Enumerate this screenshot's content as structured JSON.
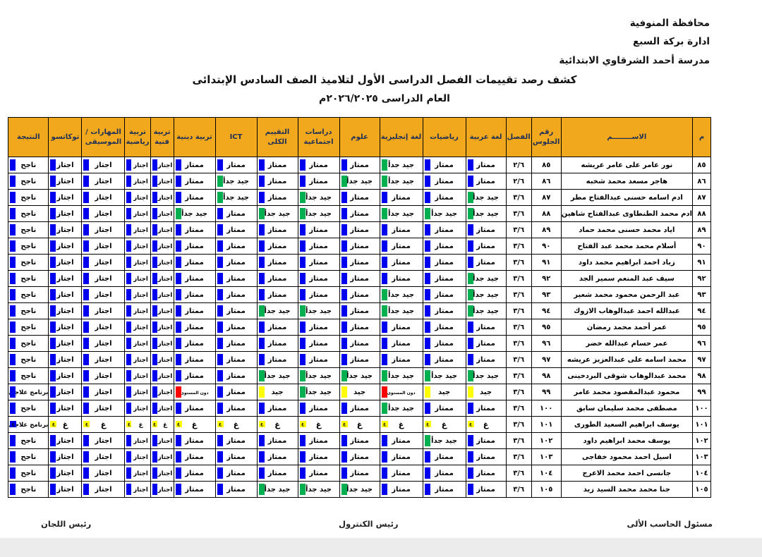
{
  "org": {
    "lines": [
      "محافظة المنوفية",
      "ادارة بركة السبع",
      "مدرسة أحمد الشرقاوي الابتدائية"
    ]
  },
  "title": "كشف رصد تقييمات الفصل الدراسى الأول لتلاميذ الصف السادس الإبتدائى",
  "subtitle": "العام الدراسى ٢٠٢٦/٢٠٢٥م",
  "footer": {
    "right": "مسئول الحاسب الألى",
    "center": "رئيس الكنترول",
    "left": "رئيس اللجان"
  },
  "colors": {
    "header_bg": "#f2a81d",
    "header_text": "#1f2f55",
    "grade_marker": {
      "ممتاز": "#0000ee",
      "جيد جدأ": "#00b050",
      "جيد": "#ffff00",
      "دون المستوى": "#ff0000",
      "اجتاز": "#0000ee",
      "ناجح": "#0000ee",
      "برنامج علاجى": "#0000ee",
      "غ": "#ffff00"
    }
  },
  "table": {
    "headers": [
      "م",
      "الاســــــــم",
      "رقم الجلوس",
      "الفصل",
      "لغة عربية",
      "رياضيات",
      "لغة إنجليزية",
      "علوم",
      "دراسات اجتماعية",
      "التقييم الكلى",
      "ICT",
      "تربية دينية",
      "تربية فنية",
      "تربية رياضية",
      "المهارات / الموسيقى",
      "توكاتسو",
      "النتيجة"
    ],
    "rows": [
      {
        "no": "٨٥",
        "name": "نور عامر على عامر عريشه",
        "seat": "٨٥",
        "cls": "٢/٦",
        "grades": [
          "ممتاز",
          "ممتاز",
          "جيد جدأ",
          "ممتاز",
          "ممتاز",
          "ممتاز",
          "ممتاز",
          "ممتاز",
          "اجتاز",
          "اجتاز",
          "اجتاز",
          "اجتاز"
        ],
        "result": "ناجح"
      },
      {
        "no": "٨٦",
        "name": "هاجر مسعد محمد شخبه",
        "seat": "٨٦",
        "cls": "٢/٦",
        "grades": [
          "ممتاز",
          "ممتاز",
          "جيد جدأ",
          "جيد جدأ",
          "ممتاز",
          "ممتاز",
          "جيد جدأ",
          "ممتاز",
          "اجتاز",
          "اجتاز",
          "اجتاز",
          "اجتاز"
        ],
        "result": "ناجح"
      },
      {
        "no": "٨٧",
        "name": "ادم اسامه حسنى عبدالفتاح مطر",
        "seat": "٨٧",
        "cls": "٣/٦",
        "grades": [
          "جيد جدأ",
          "ممتاز",
          "ممتاز",
          "ممتاز",
          "جيد جدأ",
          "ممتاز",
          "جيد جدأ",
          "ممتاز",
          "اجتاز",
          "اجتاز",
          "اجتاز",
          "اجتاز"
        ],
        "result": "ناجح"
      },
      {
        "no": "٨٨",
        "name": "ادم محمد الطنطاوى عبدالفتاح شاهين",
        "seat": "٨٨",
        "cls": "٣/٦",
        "grades": [
          "جيد جدأ",
          "جيد جدأ",
          "جيد جدأ",
          "ممتاز",
          "جيد جدأ",
          "جيد جدأ",
          "ممتاز",
          "جيد جدأ",
          "اجتاز",
          "اجتاز",
          "اجتاز",
          "اجتاز"
        ],
        "result": "ناجح"
      },
      {
        "no": "٨٩",
        "name": "اياد محمد حسنى محمد حماد",
        "seat": "٨٩",
        "cls": "٣/٦",
        "grades": [
          "ممتاز",
          "ممتاز",
          "ممتاز",
          "ممتاز",
          "ممتاز",
          "ممتاز",
          "ممتاز",
          "ممتاز",
          "اجتاز",
          "اجتاز",
          "اجتاز",
          "اجتاز"
        ],
        "result": "ناجح"
      },
      {
        "no": "٩٠",
        "name": "أسلام محمد محمد عبد الفتاح",
        "seat": "٩٠",
        "cls": "٣/٦",
        "grades": [
          "ممتاز",
          "ممتاز",
          "ممتاز",
          "ممتاز",
          "ممتاز",
          "ممتاز",
          "ممتاز",
          "ممتاز",
          "اجتاز",
          "اجتاز",
          "اجتاز",
          "اجتاز"
        ],
        "result": "ناجح"
      },
      {
        "no": "٩١",
        "name": "زياد احمد ابراهيم محمد داود",
        "seat": "٩١",
        "cls": "٣/٦",
        "grades": [
          "ممتاز",
          "ممتاز",
          "ممتاز",
          "ممتاز",
          "ممتاز",
          "ممتاز",
          "ممتاز",
          "ممتاز",
          "اجتاز",
          "اجتاز",
          "اجتاز",
          "اجتاز"
        ],
        "result": "ناجح"
      },
      {
        "no": "٩٢",
        "name": "سيف عبد المنعم سمير الجد",
        "seat": "٩٢",
        "cls": "٣/٦",
        "grades": [
          "جيد جدأ",
          "ممتاز",
          "ممتاز",
          "ممتاز",
          "ممتاز",
          "ممتاز",
          "ممتاز",
          "ممتاز",
          "اجتاز",
          "اجتاز",
          "اجتاز",
          "اجتاز"
        ],
        "result": "ناجح"
      },
      {
        "no": "٩٣",
        "name": "عبد الرحمن محمود محمد شعير",
        "seat": "٩٣",
        "cls": "٣/٦",
        "grades": [
          "جيد جدأ",
          "ممتاز",
          "جيد جدأ",
          "ممتاز",
          "ممتاز",
          "ممتاز",
          "ممتاز",
          "ممتاز",
          "اجتاز",
          "اجتاز",
          "اجتاز",
          "اجتاز"
        ],
        "result": "ناجح"
      },
      {
        "no": "٩٤",
        "name": "عبدالله احمد عبدالوهاب الازوك",
        "seat": "٩٤",
        "cls": "٣/٦",
        "grades": [
          "جيد جدأ",
          "ممتاز",
          "جيد جدأ",
          "ممتاز",
          "جيد جدأ",
          "جيد جدأ",
          "ممتاز",
          "ممتاز",
          "اجتاز",
          "اجتاز",
          "اجتاز",
          "اجتاز"
        ],
        "result": "ناجح"
      },
      {
        "no": "٩٥",
        "name": "عمر أحمد محمد رمضان",
        "seat": "٩٥",
        "cls": "٣/٦",
        "grades": [
          "ممتاز",
          "ممتاز",
          "ممتاز",
          "ممتاز",
          "ممتاز",
          "ممتاز",
          "ممتاز",
          "ممتاز",
          "اجتاز",
          "اجتاز",
          "اجتاز",
          "اجتاز"
        ],
        "result": "ناجح"
      },
      {
        "no": "٩٦",
        "name": "عمر حسام عبدالله خضر",
        "seat": "٩٦",
        "cls": "٣/٦",
        "grades": [
          "ممتاز",
          "ممتاز",
          "ممتاز",
          "ممتاز",
          "ممتاز",
          "ممتاز",
          "ممتاز",
          "ممتاز",
          "اجتاز",
          "اجتاز",
          "اجتاز",
          "اجتاز"
        ],
        "result": "ناجح"
      },
      {
        "no": "٩٧",
        "name": "محمد اسامه على عبدالعزيز عريشه",
        "seat": "٩٧",
        "cls": "٣/٦",
        "grades": [
          "ممتاز",
          "ممتاز",
          "ممتاز",
          "ممتاز",
          "ممتاز",
          "ممتاز",
          "ممتاز",
          "ممتاز",
          "اجتاز",
          "اجتاز",
          "اجتاز",
          "اجتاز"
        ],
        "result": "ناجح"
      },
      {
        "no": "٩٨",
        "name": "محمد عبدالوهاب شوقى البردخينى",
        "seat": "٩٨",
        "cls": "٣/٦",
        "grades": [
          "جيد جدأ",
          "جيد جدأ",
          "جيد جدأ",
          "جيد جدأ",
          "جيد جدأ",
          "جيد جدأ",
          "ممتاز",
          "ممتاز",
          "اجتاز",
          "اجتاز",
          "اجتاز",
          "اجتاز"
        ],
        "result": "ناجح"
      },
      {
        "no": "٩٩",
        "name": "محمود عبدالمقصود محمد عامر",
        "seat": "٩٩",
        "cls": "٣/٦",
        "grades": [
          "جيد",
          "جيد",
          "دون المستوى",
          "جيد",
          "جيد جدأ",
          "جيد",
          "ممتاز",
          "دون المستوى",
          "اجتاز",
          "اجتاز",
          "اجتاز",
          "اجتاز"
        ],
        "result": "برنامج علاجى"
      },
      {
        "no": "١٠٠",
        "name": "مصطفى محمد سليمان سابق",
        "seat": "١٠٠",
        "cls": "٣/٦",
        "grades": [
          "ممتاز",
          "ممتاز",
          "جيد جدأ",
          "ممتاز",
          "ممتاز",
          "ممتاز",
          "ممتاز",
          "ممتاز",
          "اجتاز",
          "اجتاز",
          "اجتاز",
          "اجتاز"
        ],
        "result": "ناجح"
      },
      {
        "no": "١٠١",
        "name": "يوسف ابراهيم السعيد الطورى",
        "seat": "١٠١",
        "cls": "٣/٦",
        "grades": [
          "غ",
          "غ",
          "غ",
          "غ",
          "غ",
          "غ",
          "غ",
          "غ",
          "غ",
          "غ",
          "غ",
          "غ"
        ],
        "result": "برنامج علاجى",
        "result_flag": "غ"
      },
      {
        "no": "١٠٢",
        "name": "يوسف محمد ابراهيم داود",
        "seat": "١٠٢",
        "cls": "٣/٦",
        "grades": [
          "ممتاز",
          "جيد جدأ",
          "ممتاز",
          "ممتاز",
          "ممتاز",
          "ممتاز",
          "ممتاز",
          "ممتاز",
          "اجتاز",
          "اجتاز",
          "اجتاز",
          "اجتاز"
        ],
        "result": "ناجح"
      },
      {
        "no": "١٠٣",
        "name": "اسيل احمد محمود خفاجى",
        "seat": "١٠٣",
        "cls": "٣/٦",
        "grades": [
          "ممتاز",
          "ممتاز",
          "ممتاز",
          "ممتاز",
          "ممتاز",
          "ممتاز",
          "ممتاز",
          "ممتاز",
          "اجتاز",
          "اجتاز",
          "اجتاز",
          "اجتاز"
        ],
        "result": "ناجح"
      },
      {
        "no": "١٠٤",
        "name": "جانسى احمد محمد الاعرج",
        "seat": "١٠٤",
        "cls": "٣/٦",
        "grades": [
          "ممتاز",
          "ممتاز",
          "ممتاز",
          "ممتاز",
          "ممتاز",
          "ممتاز",
          "ممتاز",
          "ممتاز",
          "اجتاز",
          "اجتاز",
          "اجتاز",
          "اجتاز"
        ],
        "result": "ناجح"
      },
      {
        "no": "١٠٥",
        "name": "جنا محمد محمد السيد زيد",
        "seat": "١٠٥",
        "cls": "٣/٦",
        "grades": [
          "ممتاز",
          "ممتاز",
          "ممتاز",
          "جيد جدأ",
          "جيد جدأ",
          "جيد جدأ",
          "ممتاز",
          "ممتاز",
          "اجتاز",
          "اجتاز",
          "اجتاز",
          "اجتاز"
        ],
        "result": "ناجح"
      }
    ]
  }
}
